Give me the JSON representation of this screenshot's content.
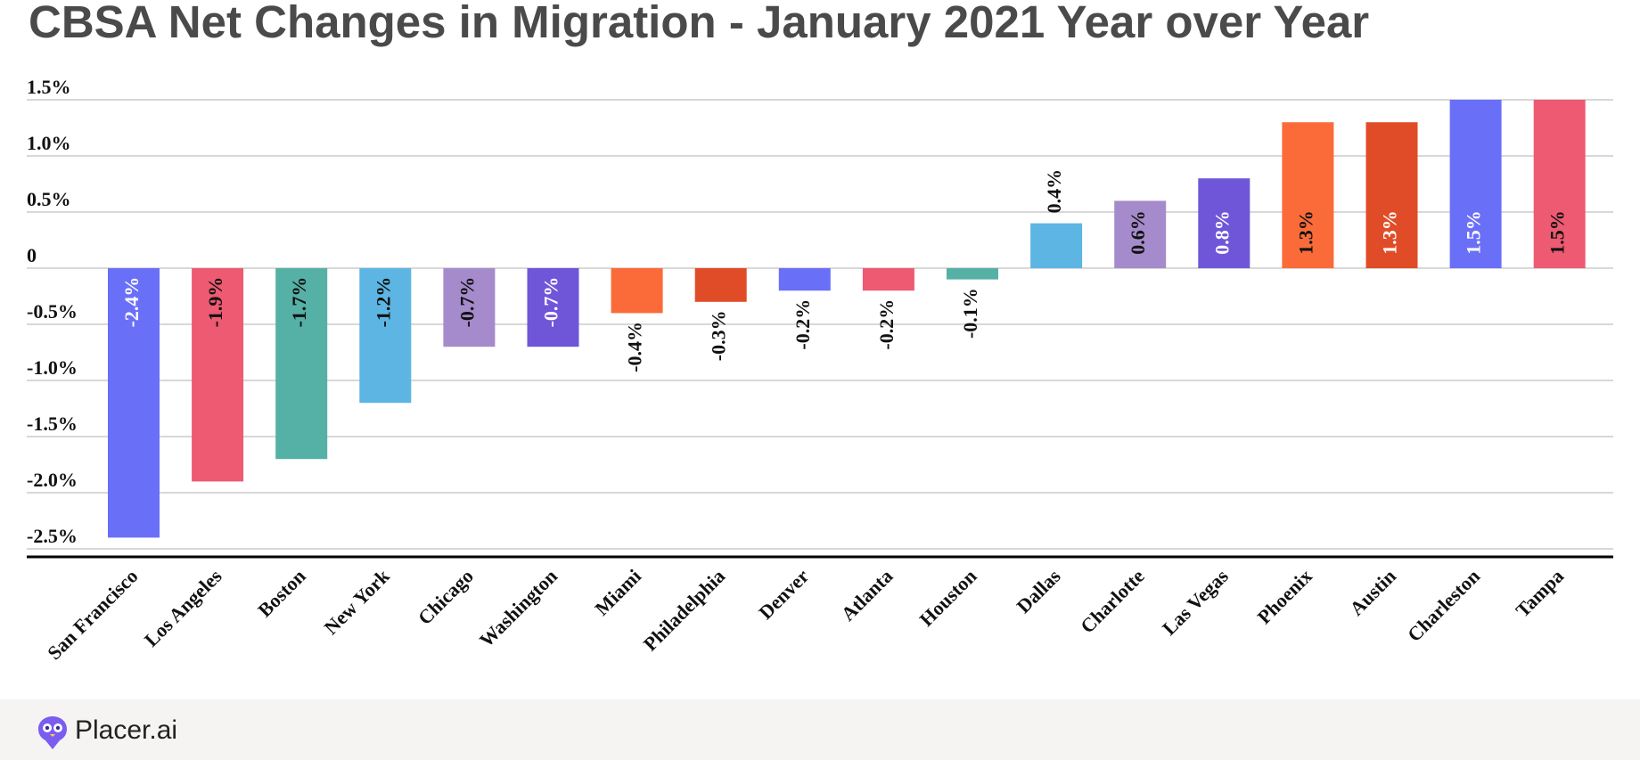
{
  "title": "CBSA Net Changes in Migration - January 2021 Year over Year",
  "brand": "Placer.ai",
  "chart_data": {
    "type": "bar",
    "categories": [
      "San Francisco",
      "Los Angeles",
      "Boston",
      "New York",
      "Chicago",
      "Washington",
      "Miami",
      "Philadelphia",
      "Denver",
      "Atlanta",
      "Houston",
      "Dallas",
      "Charlotte",
      "Las Vegas",
      "Phoenix",
      "Austin",
      "Charleston",
      "Tampa"
    ],
    "values": [
      -2.4,
      -1.9,
      -1.7,
      -1.2,
      -0.7,
      -0.7,
      -0.4,
      -0.3,
      -0.2,
      -0.2,
      -0.1,
      0.4,
      0.6,
      0.8,
      1.3,
      1.3,
      1.5,
      1.5
    ],
    "data_labels": [
      "-2.4%",
      "-1.9%",
      "-1.7%",
      "-1.2%",
      "-0.7%",
      "-0.7%",
      "-0.4%",
      "-0.3%",
      "-0.2%",
      "-0.2%",
      "-0.1%",
      "0.4%",
      "0.6%",
      "0.8%",
      "1.3%",
      "1.3%",
      "1.5%",
      "1.5%"
    ],
    "colors": [
      "#6a6ff8",
      "#ed5a72",
      "#55b0a5",
      "#5db5e3",
      "#a58bcb",
      "#6f56d9",
      "#fb6b3a",
      "#e04c27",
      "#6a6ff8",
      "#ed5a72",
      "#55b0a5",
      "#5db5e3",
      "#a58bcb",
      "#6f56d9",
      "#fb6b3a",
      "#e04c27",
      "#6a6ff8",
      "#ed5a72"
    ],
    "label_colors": [
      "#ffffff",
      "#111111",
      "#111111",
      "#111111",
      "#111111",
      "#ffffff",
      "#111111",
      "#111111",
      "#111111",
      "#111111",
      "#111111",
      "#111111",
      "#111111",
      "#ffffff",
      "#111111",
      "#ffffff",
      "#ffffff",
      "#111111"
    ],
    "yticks": [
      1.5,
      1.0,
      0.5,
      0,
      -0.5,
      -1.0,
      -1.5,
      -2.0,
      -2.5
    ],
    "ytick_labels": [
      "1.5%",
      "1.0%",
      "0.5%",
      "0",
      "-0.5%",
      "-1.0%",
      "-1.5%",
      "-2.0%",
      "-2.5%"
    ],
    "ylim": [
      -2.5,
      1.5
    ],
    "grid": true,
    "xlabel": "",
    "ylabel": ""
  }
}
